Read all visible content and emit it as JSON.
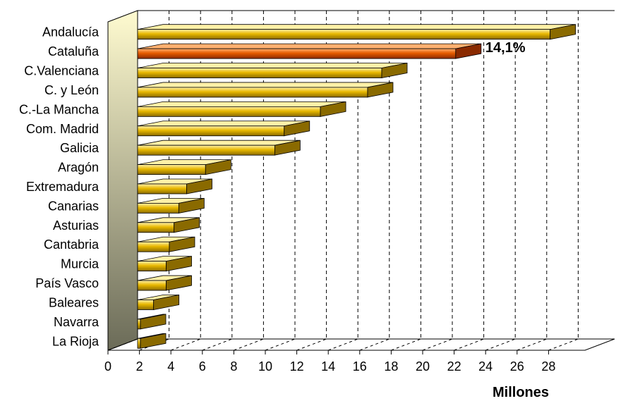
{
  "chart_data": {
    "type": "bar",
    "orientation": "horizontal",
    "three_d": true,
    "categories": [
      "Andalucía",
      "Cataluña",
      "C.Valenciana",
      "C. y León",
      "C.-La Mancha",
      "Com. Madrid",
      "Galicia",
      "Aragón",
      "Extremadura",
      "Canarias",
      "Asturias",
      "Cantabria",
      "Murcia",
      "País Vasco",
      "Baleares",
      "Navarra",
      "La Rioja"
    ],
    "values": [
      28.1,
      22.1,
      17.4,
      16.5,
      13.5,
      11.2,
      10.6,
      6.2,
      5.0,
      4.5,
      4.2,
      3.9,
      3.7,
      3.7,
      2.9,
      1.9,
      1.5
    ],
    "highlight_index": 1,
    "annotation": "14,1%",
    "xlabel": "Millones",
    "xlim": [
      0,
      29
    ],
    "xticks": [
      0,
      2,
      4,
      6,
      8,
      10,
      12,
      14,
      16,
      18,
      20,
      22,
      24,
      26,
      28
    ],
    "grid": "vertical-dashed",
    "colors": {
      "bar": "#e8b800",
      "bar_light": "#fff1a8",
      "bar_dark": "#8a6a00",
      "highlight": "#e65c00",
      "highlight_light": "#ffb070",
      "highlight_dark": "#8a2a00",
      "wall_top": "#fffbd0",
      "wall_bottom": "#6b6b58"
    }
  }
}
